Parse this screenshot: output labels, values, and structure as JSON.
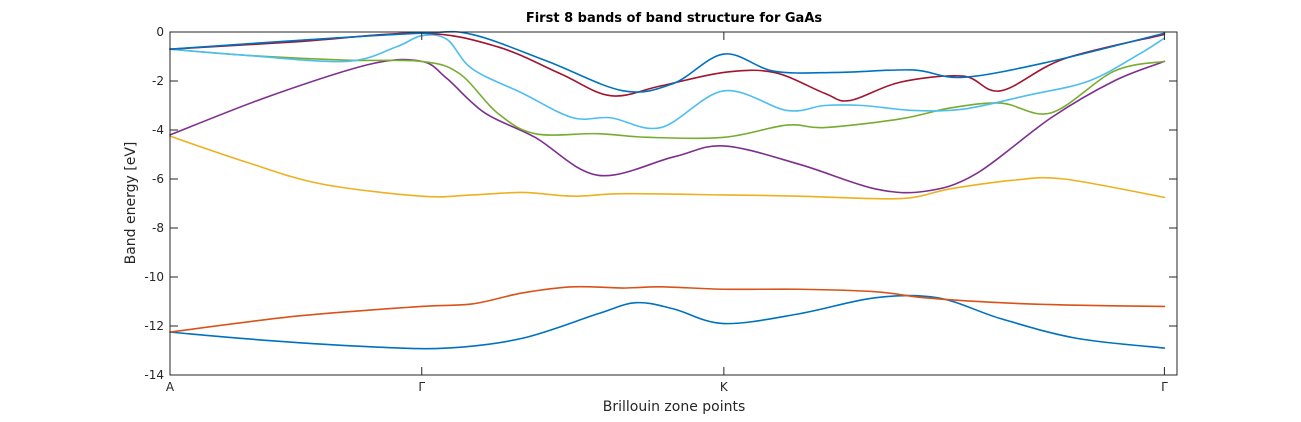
{
  "chart_data": {
    "type": "line",
    "title": "First 8 bands of band structure for GaAs",
    "xlabel": "Brillouin zone points",
    "ylabel": "Band energy [eV]",
    "xlim": [
      0,
      4
    ],
    "ylim": [
      -14,
      0
    ],
    "xticks": [
      {
        "value": 0,
        "label": "A"
      },
      {
        "value": 1,
        "label": "Γ"
      },
      {
        "value": 2.2,
        "label": "K"
      },
      {
        "value": 3.95,
        "label": "Γ"
      }
    ],
    "yticks": [
      0,
      -2,
      -4,
      -6,
      -8,
      -10,
      -12,
      -14
    ],
    "grid": false,
    "series": [
      {
        "color": "#0072BD",
        "points": [
          [
            0,
            -12.25
          ],
          [
            0.4,
            -12.6
          ],
          [
            0.8,
            -12.85
          ],
          [
            1.1,
            -12.9
          ],
          [
            1.4,
            -12.5
          ],
          [
            1.7,
            -11.5
          ],
          [
            1.85,
            -11.05
          ],
          [
            2.0,
            -11.3
          ],
          [
            2.2,
            -11.9
          ],
          [
            2.5,
            -11.5
          ],
          [
            2.8,
            -10.85
          ],
          [
            3.05,
            -10.85
          ],
          [
            3.3,
            -11.7
          ],
          [
            3.6,
            -12.5
          ],
          [
            3.95,
            -12.9
          ]
        ]
      },
      {
        "color": "#D95319",
        "points": [
          [
            0,
            -12.25
          ],
          [
            0.5,
            -11.6
          ],
          [
            1.0,
            -11.2
          ],
          [
            1.2,
            -11.1
          ],
          [
            1.4,
            -10.65
          ],
          [
            1.6,
            -10.4
          ],
          [
            1.8,
            -10.45
          ],
          [
            1.95,
            -10.4
          ],
          [
            2.2,
            -10.5
          ],
          [
            2.5,
            -10.5
          ],
          [
            2.8,
            -10.6
          ],
          [
            3.0,
            -10.85
          ],
          [
            3.3,
            -11.05
          ],
          [
            3.6,
            -11.15
          ],
          [
            3.95,
            -11.2
          ]
        ]
      },
      {
        "color": "#EDB120",
        "points": [
          [
            0,
            -4.25
          ],
          [
            0.3,
            -5.3
          ],
          [
            0.6,
            -6.2
          ],
          [
            1.0,
            -6.7
          ],
          [
            1.2,
            -6.65
          ],
          [
            1.4,
            -6.55
          ],
          [
            1.6,
            -6.7
          ],
          [
            1.8,
            -6.6
          ],
          [
            2.2,
            -6.65
          ],
          [
            2.5,
            -6.7
          ],
          [
            2.9,
            -6.8
          ],
          [
            3.1,
            -6.4
          ],
          [
            3.35,
            -6.05
          ],
          [
            3.55,
            -6.0
          ],
          [
            3.95,
            -6.75
          ]
        ]
      },
      {
        "color": "#7E2F8E",
        "points": [
          [
            0,
            -4.2
          ],
          [
            0.4,
            -2.6
          ],
          [
            0.8,
            -1.3
          ],
          [
            1.0,
            -1.2
          ],
          [
            1.1,
            -1.9
          ],
          [
            1.25,
            -3.3
          ],
          [
            1.45,
            -4.3
          ],
          [
            1.7,
            -5.85
          ],
          [
            2.0,
            -5.1
          ],
          [
            2.2,
            -4.65
          ],
          [
            2.5,
            -5.4
          ],
          [
            2.8,
            -6.4
          ],
          [
            3.0,
            -6.5
          ],
          [
            3.2,
            -5.8
          ],
          [
            3.5,
            -3.5
          ],
          [
            3.75,
            -2.0
          ],
          [
            3.95,
            -1.2
          ]
        ]
      },
      {
        "color": "#77AC30",
        "points": [
          [
            0,
            -0.7
          ],
          [
            0.3,
            -0.95
          ],
          [
            0.7,
            -1.15
          ],
          [
            1.0,
            -1.2
          ],
          [
            1.15,
            -1.7
          ],
          [
            1.3,
            -3.3
          ],
          [
            1.45,
            -4.15
          ],
          [
            1.7,
            -4.15
          ],
          [
            1.9,
            -4.3
          ],
          [
            2.2,
            -4.3
          ],
          [
            2.45,
            -3.8
          ],
          [
            2.6,
            -3.9
          ],
          [
            2.9,
            -3.55
          ],
          [
            3.1,
            -3.1
          ],
          [
            3.3,
            -2.9
          ],
          [
            3.5,
            -3.3
          ],
          [
            3.75,
            -1.6
          ],
          [
            3.95,
            -1.2
          ]
        ]
      },
      {
        "color": "#4DBEEE",
        "points": [
          [
            0,
            -0.7
          ],
          [
            0.3,
            -0.95
          ],
          [
            0.7,
            -1.2
          ],
          [
            0.9,
            -0.6
          ],
          [
            1.0,
            -0.15
          ],
          [
            1.1,
            -0.3
          ],
          [
            1.2,
            -1.5
          ],
          [
            1.4,
            -2.5
          ],
          [
            1.6,
            -3.5
          ],
          [
            1.75,
            -3.5
          ],
          [
            1.95,
            -3.9
          ],
          [
            2.2,
            -2.4
          ],
          [
            2.45,
            -3.2
          ],
          [
            2.6,
            -3.0
          ],
          [
            2.75,
            -3.0
          ],
          [
            2.95,
            -3.2
          ],
          [
            3.15,
            -3.15
          ],
          [
            3.4,
            -2.6
          ],
          [
            3.65,
            -2.0
          ],
          [
            3.85,
            -0.9
          ],
          [
            3.95,
            -0.25
          ]
        ]
      },
      {
        "color": "#A2142F",
        "points": [
          [
            0,
            -0.7
          ],
          [
            0.5,
            -0.4
          ],
          [
            1.0,
            -0.05
          ],
          [
            1.3,
            -0.6
          ],
          [
            1.55,
            -1.7
          ],
          [
            1.75,
            -2.6
          ],
          [
            1.95,
            -2.2
          ],
          [
            2.2,
            -1.65
          ],
          [
            2.4,
            -1.65
          ],
          [
            2.6,
            -2.5
          ],
          [
            2.7,
            -2.8
          ],
          [
            2.9,
            -2.05
          ],
          [
            3.15,
            -1.8
          ],
          [
            3.3,
            -2.4
          ],
          [
            3.55,
            -1.1
          ],
          [
            3.95,
            -0.1
          ]
        ]
      },
      {
        "color": "#0072BD",
        "points": [
          [
            0,
            -0.7
          ],
          [
            0.5,
            -0.35
          ],
          [
            1.0,
            -0.05
          ],
          [
            1.2,
            -0.1
          ],
          [
            1.5,
            -1.2
          ],
          [
            1.8,
            -2.4
          ],
          [
            2.0,
            -2.1
          ],
          [
            2.2,
            -0.9
          ],
          [
            2.4,
            -1.6
          ],
          [
            2.65,
            -1.65
          ],
          [
            2.95,
            -1.55
          ],
          [
            3.15,
            -1.85
          ],
          [
            3.5,
            -1.2
          ],
          [
            3.95,
            -0.05
          ]
        ]
      }
    ]
  }
}
